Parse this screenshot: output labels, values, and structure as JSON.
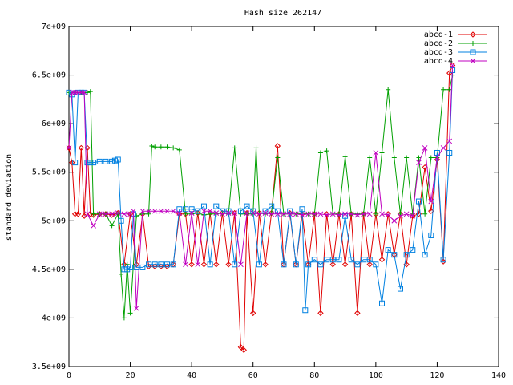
{
  "chart_data": {
    "type": "line",
    "title": "Hash size 262147",
    "xlabel": "",
    "ylabel": "standard deviation",
    "xlim": [
      0,
      140
    ],
    "ylim": [
      3500000000,
      7000000000
    ],
    "xticks": [
      0,
      20,
      40,
      60,
      80,
      100,
      120,
      140
    ],
    "xtick_labels": [
      "0",
      "20",
      "40",
      "60",
      "80",
      "100",
      "120",
      "140"
    ],
    "yticks": [
      3500000000,
      4000000000,
      4500000000,
      5000000000,
      5500000000,
      6000000000,
      6500000000,
      7000000000
    ],
    "ytick_labels": [
      "3.5e+09",
      "4e+09",
      "4.5e+09",
      "5e+09",
      "5.5e+09",
      "6e+09",
      "6.5e+09",
      "7e+09"
    ],
    "grid": false,
    "legend_position": "top-right",
    "series": [
      {
        "name": "abcd-1",
        "color": "#e00000",
        "marker": "diamond",
        "x": [
          0,
          1,
          2,
          3,
          4,
          5,
          6,
          7,
          8,
          10,
          12,
          14,
          16,
          18,
          20,
          22,
          24,
          26,
          28,
          30,
          32,
          34,
          36,
          38,
          40,
          42,
          44,
          46,
          48,
          50,
          52,
          54,
          56,
          57,
          58,
          60,
          62,
          64,
          66,
          68,
          70,
          72,
          74,
          76,
          78,
          80,
          82,
          84,
          86,
          88,
          90,
          92,
          94,
          96,
          98,
          100,
          102,
          104,
          106,
          108,
          110,
          112,
          114,
          116,
          118,
          120,
          122,
          124,
          125
        ],
        "y": [
          5750000000.0,
          5600000000.0,
          5070000000.0,
          5070000000.0,
          5750000000.0,
          5050000000.0,
          5750000000.0,
          5070000000.0,
          5060000000.0,
          5070000000.0,
          5070000000.0,
          5060000000.0,
          5080000000.0,
          4550000000.0,
          5070000000.0,
          4550000000.0,
          5070000000.0,
          4530000000.0,
          4530000000.0,
          4530000000.0,
          4530000000.0,
          4550000000.0,
          5070000000.0,
          5070000000.0,
          4550000000.0,
          5080000000.0,
          4550000000.0,
          5080000000.0,
          4550000000.0,
          5080000000.0,
          4550000000.0,
          5080000000.0,
          3700000000.0,
          3670000000.0,
          5080000000.0,
          4050000000.0,
          5080000000.0,
          4550000000.0,
          5080000000.0,
          5770000000.0,
          4550000000.0,
          5080000000.0,
          4550000000.0,
          5070000000.0,
          4550000000.0,
          5070000000.0,
          4050000000.0,
          5070000000.0,
          4550000000.0,
          5070000000.0,
          4550000000.0,
          5070000000.0,
          4050000000.0,
          5070000000.0,
          4550000000.0,
          5070000000.0,
          4600000000.0,
          5070000000.0,
          4650000000.0,
          5070000000.0,
          4550000000.0,
          5050000000.0,
          5070000000.0,
          5550000000.0,
          5100000000.0,
          5630000000.0,
          4580000000.0,
          6520000000.0,
          6600000000.0
        ]
      },
      {
        "name": "abcd-2",
        "color": "#00a000",
        "marker": "plus",
        "x": [
          0,
          2,
          4,
          6,
          7,
          8,
          10,
          12,
          14,
          16,
          17,
          18,
          19,
          20,
          22,
          24,
          26,
          27,
          28,
          30,
          32,
          34,
          36,
          38,
          40,
          42,
          44,
          46,
          48,
          50,
          52,
          54,
          56,
          58,
          60,
          61,
          62,
          64,
          66,
          68,
          70,
          72,
          74,
          76,
          78,
          80,
          82,
          84,
          86,
          88,
          90,
          92,
          94,
          96,
          98,
          100,
          102,
          104,
          106,
          108,
          110,
          112,
          114,
          116,
          118,
          120,
          122,
          124,
          125
        ],
        "y": [
          6320000000.0,
          6320000000.0,
          6320000000.0,
          6320000000.0,
          6330000000.0,
          5070000000.0,
          5070000000.0,
          5070000000.0,
          4950000000.0,
          5070000000.0,
          4450000000.0,
          4000000000.0,
          4550000000.0,
          4050000000.0,
          5050000000.0,
          5070000000.0,
          5070000000.0,
          5770000000.0,
          5760000000.0,
          5760000000.0,
          5760000000.0,
          5750000000.0,
          5730000000.0,
          5070000000.0,
          5070000000.0,
          5080000000.0,
          5060000000.0,
          5070000000.0,
          5070000000.0,
          5080000000.0,
          5070000000.0,
          5750000000.0,
          5070000000.0,
          5070000000.0,
          5070000000.0,
          5750000000.0,
          5080000000.0,
          5070000000.0,
          5080000000.0,
          5650000000.0,
          5070000000.0,
          5070000000.0,
          5070000000.0,
          5080000000.0,
          5070000000.0,
          5070000000.0,
          5700000000.0,
          5720000000.0,
          5070000000.0,
          5070000000.0,
          5660000000.0,
          5070000000.0,
          5070000000.0,
          5070000000.0,
          5650000000.0,
          5070000000.0,
          5700000000.0,
          6350000000.0,
          5650000000.0,
          5070000000.0,
          5650000000.0,
          5070000000.0,
          5650000000.0,
          5070000000.0,
          5650000000.0,
          5650000000.0,
          6350000000.0,
          6350000000.0,
          6500000000.0
        ]
      },
      {
        "name": "abcd-3",
        "color": "#0080e0",
        "marker": "square",
        "x": [
          0,
          1,
          2,
          3,
          4,
          5,
          6,
          7,
          8,
          10,
          12,
          14,
          15,
          16,
          17,
          18,
          19,
          20,
          21,
          22,
          24,
          26,
          28,
          30,
          32,
          34,
          36,
          38,
          40,
          42,
          44,
          46,
          48,
          50,
          52,
          54,
          56,
          58,
          60,
          62,
          64,
          66,
          68,
          70,
          72,
          74,
          76,
          77,
          78,
          80,
          82,
          84,
          86,
          88,
          90,
          92,
          94,
          96,
          98,
          100,
          102,
          104,
          106,
          108,
          110,
          112,
          114,
          116,
          118,
          120,
          122,
          124,
          125
        ],
        "y": [
          6320000000.0,
          6300000000.0,
          5600000000.0,
          6320000000.0,
          6320000000.0,
          6320000000.0,
          5600000000.0,
          5600000000.0,
          5600000000.0,
          5610000000.0,
          5610000000.0,
          5610000000.0,
          5620000000.0,
          5630000000.0,
          5000000000.0,
          4500000000.0,
          4500000000.0,
          4520000000.0,
          5070000000.0,
          4520000000.0,
          4520000000.0,
          4550000000.0,
          4550000000.0,
          4550000000.0,
          4550000000.0,
          4550000000.0,
          5120000000.0,
          5120000000.0,
          5120000000.0,
          5100000000.0,
          5150000000.0,
          4550000000.0,
          5150000000.0,
          5100000000.0,
          5100000000.0,
          4550000000.0,
          5100000000.0,
          5150000000.0,
          5100000000.0,
          4550000000.0,
          5100000000.0,
          5150000000.0,
          5100000000.0,
          4550000000.0,
          5100000000.0,
          4550000000.0,
          5120000000.0,
          4080000000.0,
          4550000000.0,
          4600000000.0,
          4550000000.0,
          4600000000.0,
          4600000000.0,
          4600000000.0,
          5050000000.0,
          4600000000.0,
          4550000000.0,
          4600000000.0,
          4600000000.0,
          4550000000.0,
          4150000000.0,
          4700000000.0,
          4650000000.0,
          4300000000.0,
          4650000000.0,
          4700000000.0,
          5200000000.0,
          4650000000.0,
          4850000000.0,
          5700000000.0,
          4600000000.0,
          5700000000.0,
          6550000000.0
        ]
      },
      {
        "name": "abcd-4",
        "color": "#c000c0",
        "marker": "cross",
        "x": [
          0,
          1,
          2,
          3,
          4,
          5,
          6,
          8,
          10,
          12,
          14,
          16,
          18,
          20,
          21,
          22,
          24,
          26,
          28,
          30,
          32,
          34,
          36,
          38,
          40,
          42,
          44,
          46,
          48,
          50,
          52,
          54,
          56,
          58,
          60,
          62,
          64,
          66,
          68,
          70,
          72,
          74,
          76,
          78,
          80,
          82,
          84,
          86,
          88,
          90,
          92,
          94,
          96,
          98,
          100,
          102,
          104,
          106,
          108,
          110,
          112,
          114,
          116,
          118,
          120,
          122,
          124,
          125
        ],
        "y": [
          5750000000.0,
          6320000000.0,
          6320000000.0,
          6320000000.0,
          6320000000.0,
          6320000000.0,
          5070000000.0,
          4950000000.0,
          5070000000.0,
          5070000000.0,
          5070000000.0,
          5080000000.0,
          5070000000.0,
          5070000000.0,
          5100000000.0,
          4100000000.0,
          5100000000.0,
          5100000000.0,
          5100000000.0,
          5100000000.0,
          5100000000.0,
          5100000000.0,
          5080000000.0,
          4550000000.0,
          5080000000.0,
          4550000000.0,
          5100000000.0,
          5100000000.0,
          5080000000.0,
          5070000000.0,
          5080000000.0,
          5080000000.0,
          4550000000.0,
          5080000000.0,
          5080000000.0,
          5070000000.0,
          5080000000.0,
          5070000000.0,
          5070000000.0,
          5070000000.0,
          5070000000.0,
          5070000000.0,
          5060000000.0,
          5070000000.0,
          5070000000.0,
          5070000000.0,
          5060000000.0,
          5070000000.0,
          5060000000.0,
          5070000000.0,
          5070000000.0,
          5060000000.0,
          5070000000.0,
          5070000000.0,
          5700000000.0,
          5070000000.0,
          5060000000.0,
          5000000000.0,
          5050000000.0,
          5070000000.0,
          5050000000.0,
          5600000000.0,
          5750000000.0,
          5200000000.0,
          5650000000.0,
          5750000000.0,
          5820000000.0,
          6600000000.0
        ]
      }
    ]
  }
}
